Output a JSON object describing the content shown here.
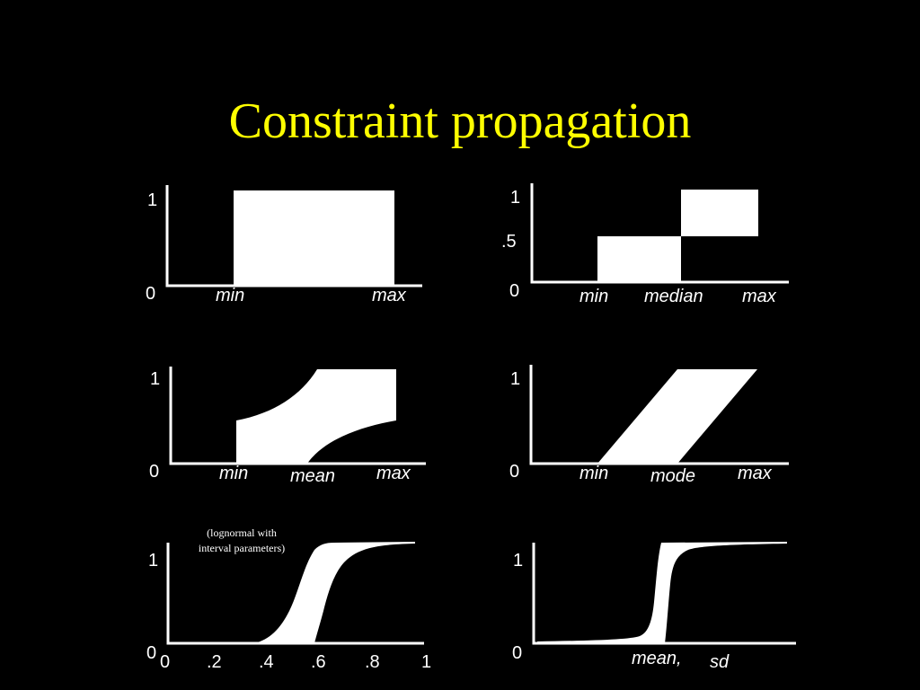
{
  "title": "Constraint propagation",
  "panels": {
    "p1": {
      "y_ticks": [
        "1",
        "0"
      ],
      "x_labels": [
        "min",
        "max"
      ]
    },
    "p2": {
      "y_ticks": [
        "1",
        ".5",
        "0"
      ],
      "x_labels": [
        "min",
        "median",
        "max"
      ]
    },
    "p3": {
      "y_ticks": [
        "1",
        "0"
      ],
      "x_labels": [
        "min",
        "mean",
        "max"
      ]
    },
    "p4": {
      "y_ticks": [
        "1",
        "0"
      ],
      "x_labels": [
        "min",
        "mode",
        "max"
      ]
    },
    "p5": {
      "note_line1": "(lognormal with",
      "note_line2": "interval parameters)",
      "y_ticks": [
        "1",
        "0"
      ],
      "x_ticks": [
        "0",
        ".2",
        ".4",
        ".6",
        ".8",
        "1"
      ]
    },
    "p6": {
      "y_ticks": [
        "1",
        "0"
      ],
      "x_label_mean": "mean,",
      "x_label_sd": "sd"
    }
  },
  "colors": {
    "background": "#000000",
    "title": "#ffff00",
    "foreground": "#ffffff"
  }
}
